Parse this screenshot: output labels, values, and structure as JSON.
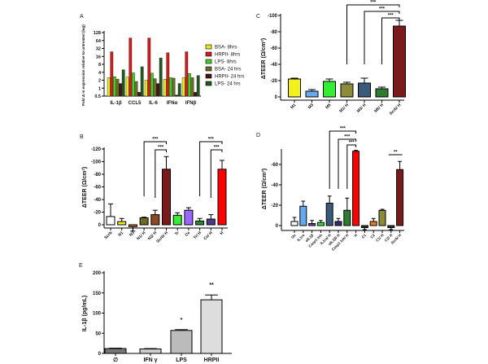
{
  "chart_data": [
    {
      "panel": "A",
      "type": "bar",
      "ylabel": "Fold Δ in expression relative to untreated (log)",
      "yscale": "log2",
      "ylim": [
        0.5,
        128
      ],
      "yticks": [
        "0.5",
        "1",
        "2",
        "4",
        "8",
        "16",
        "32",
        "64",
        "128"
      ],
      "ytick_values": [
        0.5,
        1,
        2,
        4,
        8,
        16,
        32,
        64,
        128
      ],
      "categories": [
        "IL-1β",
        "CCL5",
        "IL-6",
        "IFNα",
        "IFNβ"
      ],
      "legend_position": "right",
      "series": [
        {
          "name": "BSA- 8hrs",
          "color": "#e8e818",
          "values": [
            2.5,
            2.6,
            2.0,
            2.2,
            2.5
          ]
        },
        {
          "name": "HRPII- 8hrs",
          "color": "#d41a1a",
          "values": [
            24,
            80,
            80,
            22,
            24
          ]
        },
        {
          "name": "LPS- 8hrs",
          "color": "#3fd12a",
          "values": [
            2.7,
            3.8,
            3.7,
            2.5,
            3.6
          ]
        },
        {
          "name": "BSA- 24 hrs",
          "color": "#6b6b2a",
          "values": [
            2.2,
            1.8,
            2.3,
            2.4,
            2.5
          ]
        },
        {
          "name": "HRPII- 24 hrs",
          "color": "#4a1212",
          "values": [
            1.5,
            0.7,
            1.5,
            0.55,
            0.7
          ]
        },
        {
          "name": "LPS- 24 hrs",
          "color": "#1f5a1f",
          "values": [
            5,
            6.5,
            14,
            1.5,
            3
          ]
        }
      ]
    },
    {
      "panel": "B",
      "type": "bar",
      "ylabel": "ΔTEER (Ω/cm²)",
      "ylim": [
        0,
        -120
      ],
      "yticks": [
        "0",
        "-20",
        "-40",
        "-60",
        "-80",
        "-100",
        "-120"
      ],
      "ytick_values": [
        0,
        -20,
        -40,
        -60,
        -80,
        -100,
        -120
      ],
      "categories": [
        "Scrb",
        "N1",
        "N3",
        "N1/ H",
        "N3/ H",
        "Scrb/ H",
        "Tr",
        "Ce",
        "Tr/ H",
        "Ce/ H",
        "H"
      ],
      "values": [
        -13,
        -5,
        3,
        -11,
        -16,
        -88,
        -15,
        -23,
        -6,
        -9,
        -88
      ],
      "errors": [
        20,
        5,
        7,
        1,
        7,
        20,
        4,
        4,
        4,
        7,
        14
      ],
      "colors": [
        "#ffffff",
        "#f2f21a",
        "#d2692a",
        "#6b6b2a",
        "#8b4a22",
        "#7a1a1a",
        "#33ee33",
        "#9966ff",
        "#2e8b2e",
        "#4b3a8c",
        "#ff0000"
      ],
      "significance": [
        {
          "from": 3,
          "to": 5,
          "label": "***"
        },
        {
          "from": 4,
          "to": 5,
          "label": "***"
        },
        {
          "from": 8,
          "to": 10,
          "label": "***"
        },
        {
          "from": 9,
          "to": 10,
          "label": "***"
        }
      ]
    },
    {
      "panel": "C",
      "type": "bar",
      "ylabel": "ΔTEER (Ω/cm²)",
      "ylim": [
        0,
        -100
      ],
      "yticks": [
        "0",
        "-20",
        "-40",
        "-60",
        "-80",
        "-100"
      ],
      "ytick_values": [
        0,
        -20,
        -40,
        -60,
        -80,
        -100
      ],
      "categories": [
        "M1",
        "M3",
        "M5",
        "M1/ H",
        "M3/ H",
        "M5/ H",
        "Scrb/ H"
      ],
      "values": [
        -22,
        -7,
        -19,
        -16,
        -17,
        -10,
        -87
      ],
      "errors": [
        1,
        2,
        3,
        2,
        6,
        2,
        7
      ],
      "colors": [
        "#f2f21a",
        "#66aaee",
        "#33ee33",
        "#8b8b3a",
        "#3a5a7a",
        "#2e7d2e",
        "#7a1a1a"
      ],
      "significance": [
        {
          "from": 3,
          "to": 6,
          "label": "***"
        },
        {
          "from": 4,
          "to": 6,
          "label": "***"
        },
        {
          "from": 5,
          "to": 6,
          "label": "***"
        }
      ]
    },
    {
      "panel": "D",
      "type": "bar",
      "ylabel": "ΔTEER (Ω/cm²)",
      "ylim": [
        0,
        -75
      ],
      "yticks": [
        "0",
        "-20",
        "-40",
        "-60"
      ],
      "ytick_values": [
        0,
        -20,
        -40,
        -60
      ],
      "categories": [
        "Un",
        "IL1ra",
        "αIL1β",
        "Casp1 Inh",
        "IL1ra/ H",
        "αIL1β/ H",
        "Casp1 Inh/ H",
        "H",
        "C1",
        "C2",
        "C1/ H",
        "C2/ H",
        "Scrb/ H"
      ],
      "values": [
        -4,
        -19,
        -2,
        -3,
        -22,
        -4,
        -15,
        -73,
        2,
        -4,
        -15,
        2,
        -55
      ],
      "errors": [
        4,
        5,
        3,
        2,
        7,
        3,
        12,
        1,
        2,
        3,
        1,
        2,
        8
      ],
      "colors": [
        "#ffffff",
        "#66aaee",
        "#6a3fb0",
        "#33ee33",
        "#3a5a7a",
        "#3a2a7a",
        "#2e7d2e",
        "#ff0000",
        "#333333",
        "#ee7722",
        "#8b8b3a",
        "#333333",
        "#7a1a1a"
      ],
      "significance": [
        {
          "from": 4,
          "to": 7,
          "label": "***"
        },
        {
          "from": 5,
          "to": 7,
          "label": "***"
        },
        {
          "from": 6,
          "to": 7,
          "label": "***"
        },
        {
          "from": 11,
          "to": 12,
          "label": "**"
        }
      ]
    },
    {
      "panel": "E",
      "type": "bar",
      "ylabel": "IL-1β (pg/mL)",
      "ylim": [
        0,
        200
      ],
      "yticks": [
        "0",
        "50",
        "100",
        "150",
        "200"
      ],
      "ytick_values": [
        0,
        50,
        100,
        150,
        200
      ],
      "categories": [
        "∅",
        "IFN γ",
        "LPS",
        "HRPII"
      ],
      "values": [
        12,
        11,
        57,
        133
      ],
      "errors": [
        1,
        1,
        2,
        12
      ],
      "colors": [
        "#777777",
        "#cccccc",
        "#bbbbbb",
        "#dddddd"
      ],
      "annotations": [
        "",
        "",
        "*",
        "**"
      ]
    }
  ]
}
